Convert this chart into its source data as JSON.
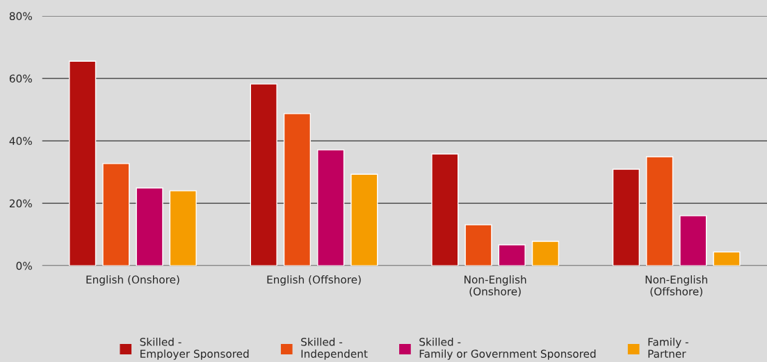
{
  "chart_data": {
    "type": "bar",
    "categories": [
      "English (Onshore)",
      "English (Offshore)",
      "Non-English\n(Onshore)",
      "Non-English\n(Offshore)"
    ],
    "series": [
      {
        "name": "Skilled -\nEmployer Sponsored",
        "color": "#b5100e",
        "values": [
          65.5,
          58.2,
          35.8,
          30.9
        ]
      },
      {
        "name": "Skilled -\nIndependent",
        "color": "#e84e10",
        "values": [
          32.7,
          48.7,
          13.1,
          34.9
        ]
      },
      {
        "name": "Skilled -\nFamily or Government Sponsored",
        "color": "#c0005f",
        "values": [
          24.9,
          37.1,
          6.7,
          16.0
        ]
      },
      {
        "name": "Family -\nPartner",
        "color": "#f59c00",
        "values": [
          24.0,
          29.3,
          7.8,
          4.4
        ]
      }
    ],
    "ylim": [
      0,
      80
    ],
    "yticks": [
      {
        "value": 0,
        "label": "0%"
      },
      {
        "value": 20,
        "label": "20%"
      },
      {
        "value": 40,
        "label": "40%"
      },
      {
        "value": 60,
        "label": "60%"
      },
      {
        "value": 80,
        "label": "80%"
      }
    ],
    "grid": "y",
    "legend": "bottom"
  }
}
